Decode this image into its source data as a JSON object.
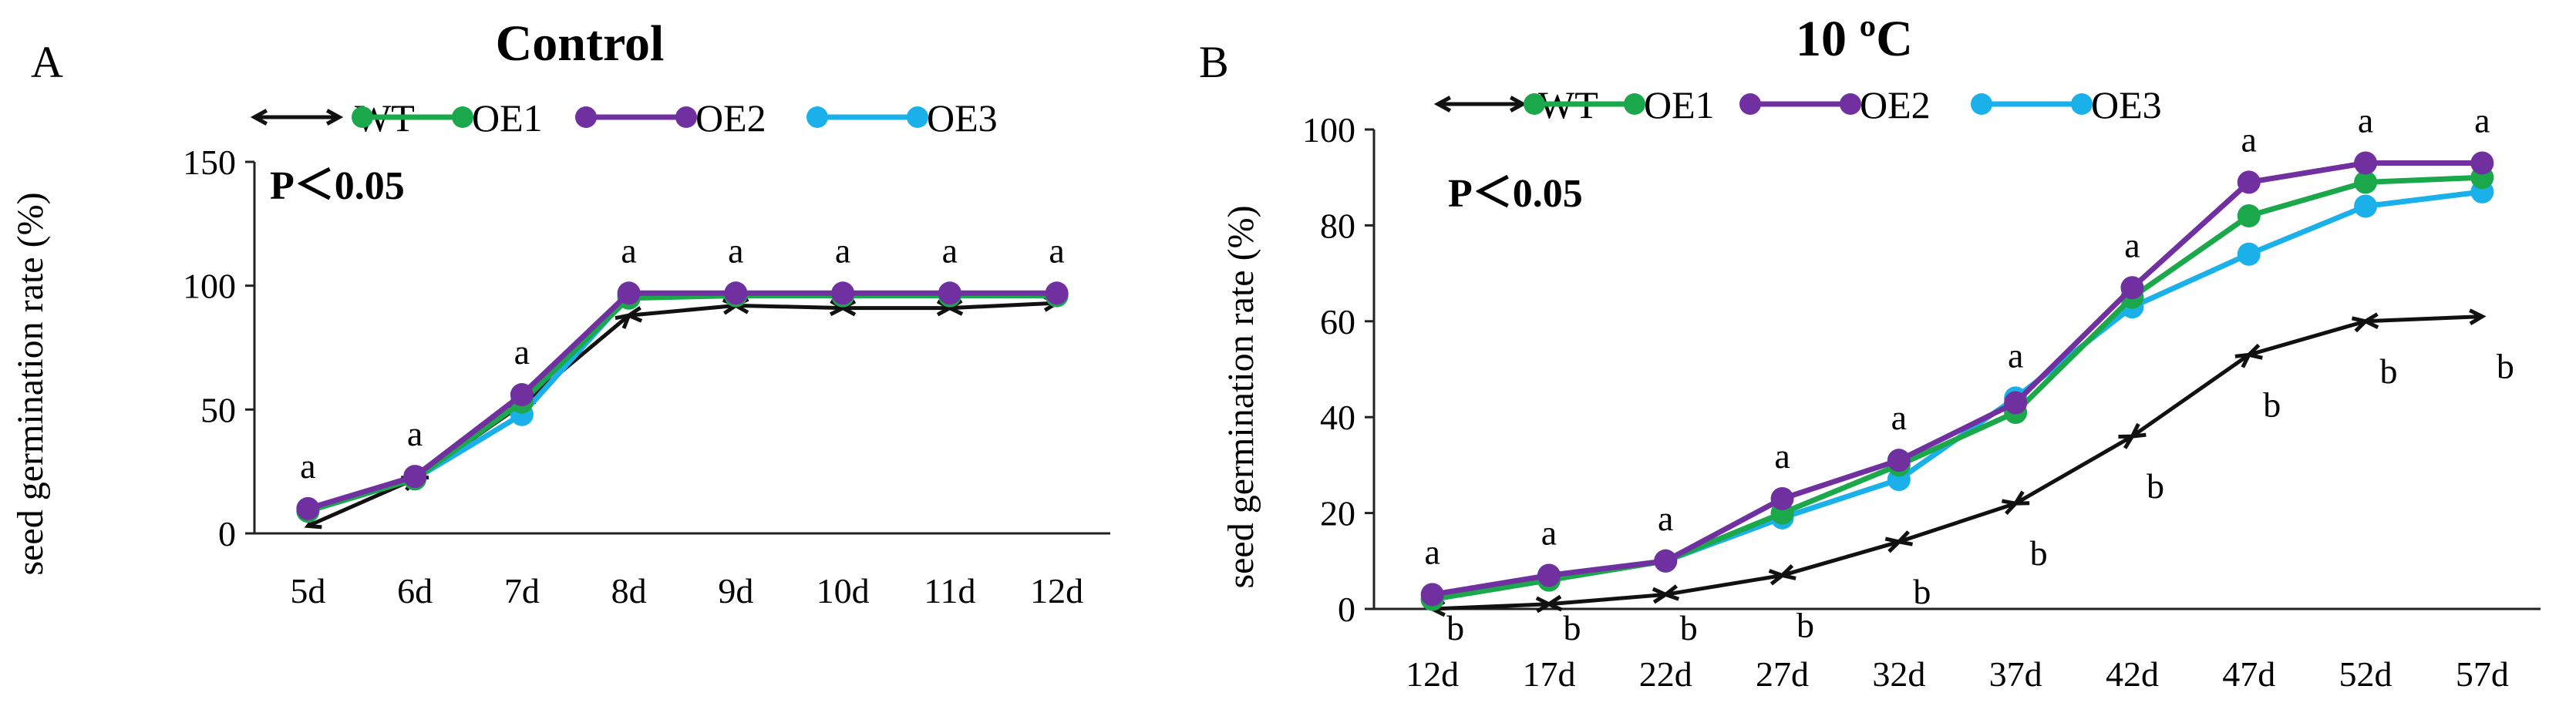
{
  "figure": {
    "legend_labels": [
      "WT",
      "OE1",
      "OE2",
      "OE3"
    ],
    "colors": {
      "WT": "#111111",
      "OE1": "#1aa84a",
      "OE2": "#7030a0",
      "OE3": "#1ab0ea"
    }
  },
  "chart_data": [
    {
      "type": "line",
      "panel_label": "A",
      "title": "Control",
      "annotation": "P＜0.05",
      "ylabel": "seed germination rate (%)",
      "xlabel": "",
      "ylim": [
        0,
        150
      ],
      "yticks": [
        0,
        50,
        100,
        150
      ],
      "categories": [
        "5d",
        "6d",
        "7d",
        "8d",
        "9d",
        "10d",
        "11d",
        "12d"
      ],
      "legend_position": "top",
      "series": [
        {
          "name": "WT",
          "values": [
            3,
            22,
            52,
            88,
            92,
            91,
            91,
            93
          ],
          "marker": "double-arrow"
        },
        {
          "name": "OE1",
          "values": [
            9,
            22,
            53,
            95,
            96,
            96,
            96,
            96
          ],
          "marker": "circle"
        },
        {
          "name": "OE2",
          "values": [
            10,
            23,
            56,
            97,
            97,
            97,
            97,
            97
          ],
          "marker": "circle"
        },
        {
          "name": "OE3",
          "values": [
            9,
            22,
            48,
            96,
            97,
            96,
            96,
            96
          ],
          "marker": "circle"
        }
      ],
      "top_labels": [
        "a",
        "a",
        "a",
        "a",
        "a",
        "a",
        "a",
        "a"
      ],
      "wt_labels": []
    },
    {
      "type": "line",
      "panel_label": "B",
      "title": "10 ºC",
      "annotation": "P＜0.05",
      "ylabel": "seed germination rate (%)",
      "xlabel": "",
      "ylim": [
        0,
        100
      ],
      "yticks": [
        0,
        20,
        40,
        60,
        80,
        100
      ],
      "categories": [
        "12d",
        "17d",
        "22d",
        "27d",
        "32d",
        "37d",
        "42d",
        "47d",
        "52d",
        "57d"
      ],
      "legend_position": "top",
      "series": [
        {
          "name": "WT",
          "values": [
            0,
            1,
            3,
            7,
            14,
            22,
            36,
            53,
            60,
            61
          ],
          "marker": "double-arrow"
        },
        {
          "name": "OE1",
          "values": [
            2,
            6,
            10,
            20,
            30,
            41,
            65,
            82,
            89,
            90
          ],
          "marker": "circle"
        },
        {
          "name": "OE2",
          "values": [
            3,
            7,
            10,
            23,
            31,
            43,
            67,
            89,
            93,
            93
          ],
          "marker": "circle"
        },
        {
          "name": "OE3",
          "values": [
            2,
            7,
            10,
            19,
            27,
            44,
            63,
            74,
            84,
            87
          ],
          "marker": "circle"
        }
      ],
      "top_labels": [
        "a",
        "a",
        "a",
        "a",
        "a",
        "a",
        "a",
        "a",
        "a",
        "a"
      ],
      "wt_labels": [
        "b",
        "b",
        "b",
        "b",
        "b",
        "b",
        "b",
        "b",
        "b",
        "b"
      ]
    }
  ]
}
